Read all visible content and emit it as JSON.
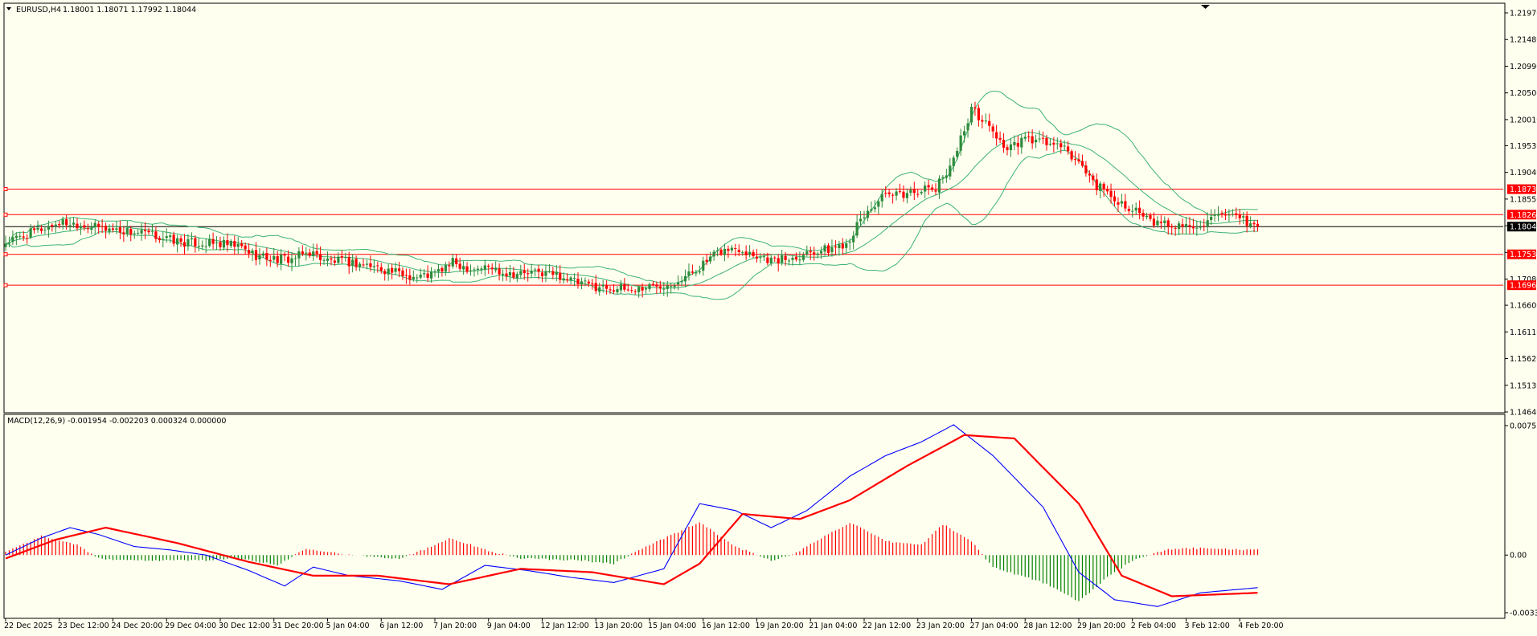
{
  "window": {
    "symbol_label": "EURUSD,H4",
    "ohlc_label": "1.18001 1.18071 1.17992 1.18044"
  },
  "indicator": {
    "label": "MACD(12,26,9) -0.001954 -0.002203 0.000324 0.000000"
  },
  "colors": {
    "background": "#fffff0",
    "bull": "#2e8b3c",
    "bear": "#ff0000",
    "bands": "#3cb371",
    "hline": "#ff0000",
    "bid_line": "#000000",
    "macd_line": "#0000ff",
    "signal_line": "#ff0000",
    "hist_pos": "#ff0000",
    "hist_neg": "#008000"
  },
  "chart_data": [
    {
      "type": "candlestick",
      "symbol": "EURUSD",
      "timeframe": "H4",
      "ylim": [
        1.1464,
        1.2197
      ],
      "y_ticks": [
        "1.21970",
        "1.21480",
        "1.20990",
        "1.20500",
        "1.20010",
        "1.19530",
        "1.19040",
        "1.18550",
        "1.18060",
        "1.17570",
        "1.17080",
        "1.16600",
        "1.16110",
        "1.15620",
        "1.15130",
        "1.14640"
      ],
      "x_ticks": [
        "22 Dec 2025",
        "23 Dec 12:00",
        "24 Dec 20:00",
        "29 Dec 04:00",
        "30 Dec 12:00",
        "31 Dec 20:00",
        "5 Jan 04:00",
        "6 Jan 12:00",
        "7 Jan 20:00",
        "9 Jan 04:00",
        "12 Jan 12:00",
        "13 Jan 20:00",
        "15 Jan 04:00",
        "16 Jan 12:00",
        "19 Jan 20:00",
        "21 Jan 04:00",
        "22 Jan 12:00",
        "23 Jan 20:00",
        "27 Jan 04:00",
        "28 Jan 12:00",
        "29 Jan 20:00",
        "2 Feb 04:00",
        "3 Feb 12:00",
        "4 Feb 20:00"
      ],
      "close_anchors": [
        [
          0,
          1.1775
        ],
        [
          5,
          1.1787
        ],
        [
          10,
          1.18
        ],
        [
          15,
          1.1812
        ],
        [
          20,
          1.181
        ],
        [
          25,
          1.1803
        ],
        [
          30,
          1.18
        ],
        [
          35,
          1.1795
        ],
        [
          40,
          1.179
        ],
        [
          45,
          1.1782
        ],
        [
          50,
          1.1775
        ],
        [
          55,
          1.1774
        ],
        [
          60,
          1.1772
        ],
        [
          65,
          1.1768
        ],
        [
          70,
          1.1752
        ],
        [
          75,
          1.1745
        ],
        [
          80,
          1.1745
        ],
        [
          85,
          1.1758
        ],
        [
          90,
          1.1742
        ],
        [
          95,
          1.174
        ],
        [
          100,
          1.1735
        ],
        [
          105,
          1.1728
        ],
        [
          110,
          1.1718
        ],
        [
          115,
          1.1712
        ],
        [
          120,
          1.1718
        ],
        [
          125,
          1.1738
        ],
        [
          130,
          1.1728
        ],
        [
          135,
          1.173
        ],
        [
          140,
          1.172
        ],
        [
          145,
          1.1718
        ],
        [
          150,
          1.172
        ],
        [
          155,
          1.1715
        ],
        [
          160,
          1.17
        ],
        [
          165,
          1.1695
        ],
        [
          170,
          1.1692
        ],
        [
          175,
          1.1688
        ],
        [
          180,
          1.1695
        ],
        [
          185,
          1.17
        ],
        [
          190,
          1.1712
        ],
        [
          195,
          1.1735
        ],
        [
          200,
          1.176
        ],
        [
          205,
          1.1765
        ],
        [
          210,
          1.1752
        ],
        [
          215,
          1.1742
        ],
        [
          220,
          1.1748
        ],
        [
          225,
          1.176
        ],
        [
          230,
          1.1762
        ],
        [
          235,
          1.1775
        ],
        [
          240,
          1.1825
        ],
        [
          245,
          1.1858
        ],
        [
          250,
          1.1862
        ],
        [
          255,
          1.1872
        ],
        [
          260,
          1.1873
        ],
        [
          265,
          1.193
        ],
        [
          270,
          1.202
        ],
        [
          275,
          1.1988
        ],
        [
          280,
          1.1945
        ],
        [
          285,
          1.1965
        ],
        [
          290,
          1.196
        ],
        [
          295,
          1.195
        ],
        [
          300,
          1.1922
        ],
        [
          305,
          1.188
        ],
        [
          310,
          1.1855
        ],
        [
          315,
          1.1838
        ],
        [
          320,
          1.1812
        ],
        [
          325,
          1.1808
        ],
        [
          330,
          1.1805
        ],
        [
          335,
          1.1812
        ],
        [
          340,
          1.1822
        ],
        [
          345,
          1.1818
        ],
        [
          350,
          1.1804
        ]
      ],
      "horizontal_levels": [
        1.18732,
        1.18264,
        1.17535,
        1.16968
      ],
      "price_tags": [
        "1.18732",
        "1.18264",
        "1.17535",
        "1.16968"
      ],
      "bid": 1.18044,
      "bid_tag": "1.18044",
      "bollinger": {
        "period": 20,
        "deviations": 2
      }
    },
    {
      "type": "macd",
      "fast": 12,
      "slow": 26,
      "signal": 9,
      "ylim": [
        -0.00336,
        0.00755
      ],
      "y_ticks": [
        "0.00755",
        "0.00",
        "-0.00336"
      ],
      "macd_anchors": [
        [
          0,
          0.0
        ],
        [
          10,
          0.001
        ],
        [
          18,
          0.0016
        ],
        [
          26,
          0.0012
        ],
        [
          36,
          0.0005
        ],
        [
          46,
          0.0003
        ],
        [
          56,
          0.0
        ],
        [
          68,
          -0.0009
        ],
        [
          78,
          -0.0018
        ],
        [
          86,
          -0.0007
        ],
        [
          96,
          -0.0012
        ],
        [
          110,
          -0.0015
        ],
        [
          122,
          -0.002
        ],
        [
          134,
          -0.0006
        ],
        [
          146,
          -0.0009
        ],
        [
          158,
          -0.0013
        ],
        [
          170,
          -0.0016
        ],
        [
          184,
          -0.0008
        ],
        [
          194,
          0.003
        ],
        [
          204,
          0.0026
        ],
        [
          214,
          0.0016
        ],
        [
          224,
          0.0026
        ],
        [
          236,
          0.0046
        ],
        [
          246,
          0.0058
        ],
        [
          256,
          0.0066
        ],
        [
          265,
          0.0076
        ],
        [
          276,
          0.0058
        ],
        [
          290,
          0.0028
        ],
        [
          300,
          -0.001
        ],
        [
          310,
          -0.0026
        ],
        [
          322,
          -0.003
        ],
        [
          334,
          -0.0022
        ],
        [
          350,
          -0.0019
        ]
      ],
      "signal_anchors": [
        [
          0,
          -0.0002
        ],
        [
          14,
          0.0009
        ],
        [
          28,
          0.0016
        ],
        [
          48,
          0.0007
        ],
        [
          68,
          -0.0004
        ],
        [
          86,
          -0.0012
        ],
        [
          104,
          -0.0012
        ],
        [
          124,
          -0.0017
        ],
        [
          144,
          -0.0008
        ],
        [
          164,
          -0.001
        ],
        [
          184,
          -0.0017
        ],
        [
          194,
          -0.0005
        ],
        [
          206,
          0.0024
        ],
        [
          222,
          0.0021
        ],
        [
          236,
          0.0032
        ],
        [
          252,
          0.0052
        ],
        [
          268,
          0.007
        ],
        [
          282,
          0.0068
        ],
        [
          300,
          0.003
        ],
        [
          312,
          -0.0012
        ],
        [
          326,
          -0.0024
        ],
        [
          350,
          -0.0022
        ]
      ],
      "hist_anchors": [
        [
          0,
          0.0002
        ],
        [
          10,
          0.0011
        ],
        [
          20,
          0.0006
        ],
        [
          26,
          -0.0002
        ],
        [
          36,
          -0.0003
        ],
        [
          56,
          -0.0003
        ],
        [
          66,
          -0.0002
        ],
        [
          76,
          -0.0006
        ],
        [
          84,
          0.0004
        ],
        [
          96,
          0.0
        ],
        [
          110,
          -0.0002
        ],
        [
          118,
          0.0004
        ],
        [
          124,
          0.001
        ],
        [
          136,
          0.0002
        ],
        [
          144,
          -0.0002
        ],
        [
          160,
          -0.0003
        ],
        [
          170,
          -0.0005
        ],
        [
          178,
          0.0004
        ],
        [
          194,
          0.0019
        ],
        [
          204,
          0.0005
        ],
        [
          214,
          -0.0003
        ],
        [
          220,
          0.0
        ],
        [
          228,
          0.001
        ],
        [
          236,
          0.0019
        ],
        [
          246,
          0.0008
        ],
        [
          256,
          0.0006
        ],
        [
          262,
          0.0018
        ],
        [
          270,
          0.0008
        ],
        [
          276,
          -0.0007
        ],
        [
          290,
          -0.0016
        ],
        [
          300,
          -0.0027
        ],
        [
          308,
          -0.0013
        ],
        [
          316,
          -0.0002
        ],
        [
          324,
          0.0003
        ],
        [
          332,
          0.0004
        ],
        [
          350,
          0.0003
        ]
      ]
    }
  ]
}
